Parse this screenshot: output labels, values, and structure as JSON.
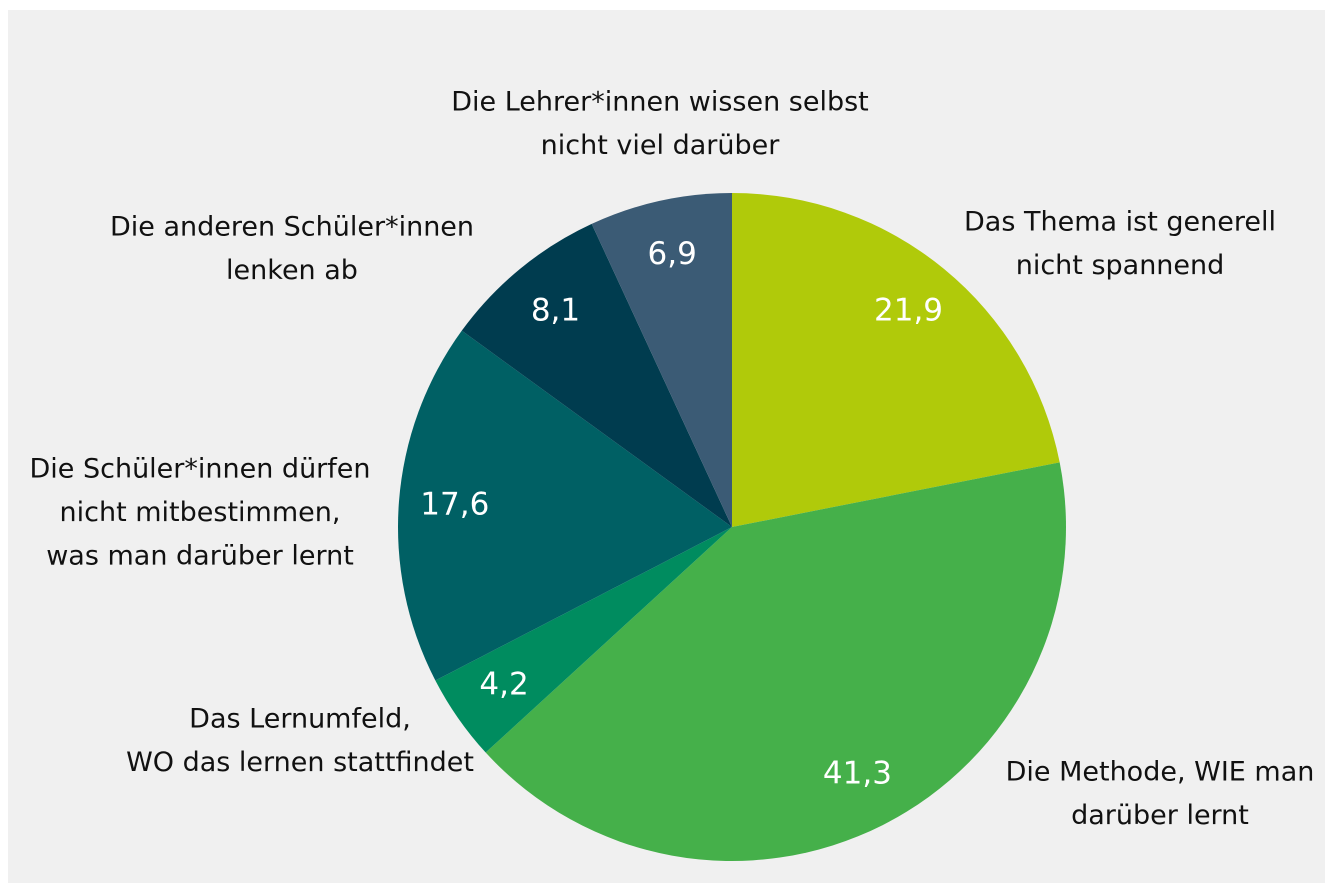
{
  "chart_data": {
    "type": "pie",
    "categories": [
      [
        "Das Thema ist generell",
        "nicht spannend"
      ],
      [
        "Die Methode, WIE man",
        "darüber lernt"
      ],
      [
        "Das Lernumfeld,",
        "WO das lernen stattfindet"
      ],
      [
        "Die Schüler*innen dürfen",
        "nicht mitbestimmen,",
        "was man darüber lernt"
      ],
      [
        "Die anderen Schüler*innen",
        "lenken ab"
      ],
      [
        "Die Lehrer*innen wissen selbst",
        "nicht viel darüber"
      ]
    ],
    "values": [
      21.9,
      41.3,
      4.2,
      17.6,
      8.1,
      6.9
    ],
    "value_labels": [
      "21,9",
      "41,3",
      "4,2",
      "17,6",
      "8,1",
      "6,9"
    ],
    "colors": [
      "#b0ca0a",
      "#45b04a",
      "#008c5f",
      "#006064",
      "#003c4f",
      "#3b5b75"
    ]
  }
}
